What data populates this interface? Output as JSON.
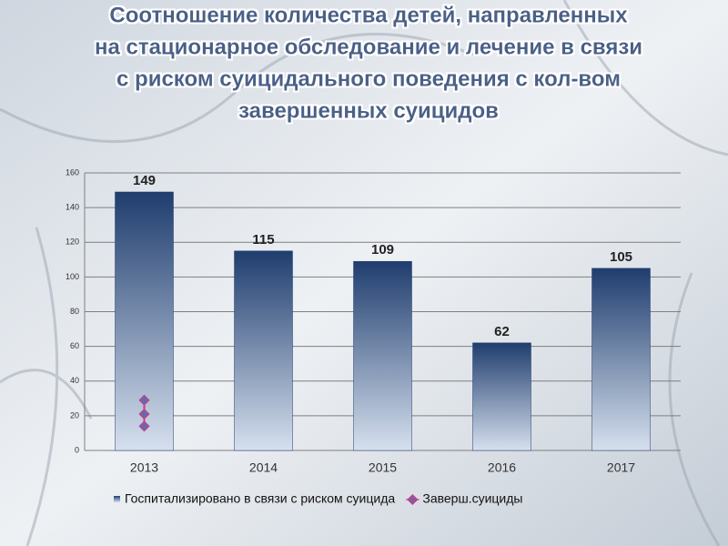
{
  "chart_data": {
    "type": "bar",
    "title": [
      "Соотношение количества детей, направленных",
      "на стационарное обследование и лечение в связи",
      "с риском суицидального поведения с кол-вом",
      "завершенных суицидов"
    ],
    "categories": [
      "2013",
      "2014",
      "2015",
      "2016",
      "2017"
    ],
    "series": [
      {
        "name": "Госпитализировано в связи с риском суицида",
        "color": "#1f3d6e",
        "values": [
          149,
          115,
          109,
          62,
          105
        ]
      },
      {
        "name": "Заверш.суициды",
        "color": "#c0408a",
        "type": "line",
        "x": [
          "2013",
          "2013",
          "2013"
        ],
        "values": [
          29,
          21,
          14
        ]
      }
    ],
    "ylim": [
      0,
      160
    ],
    "yticks": [
      0,
      20,
      40,
      60,
      80,
      100,
      120,
      140,
      160
    ],
    "grid": true,
    "legend": "bottom"
  }
}
